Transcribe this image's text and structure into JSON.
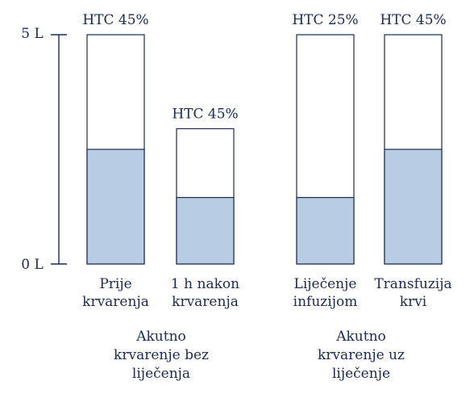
{
  "chart_data": {
    "type": "bar",
    "ylim": [
      0,
      5
    ],
    "y_ticks": [
      "0 L",
      "5 L"
    ],
    "bars": [
      {
        "category": [
          "Prije",
          "krvarenja"
        ],
        "hct_label": "HTC 45%",
        "total": 5.0,
        "filled": 2.5
      },
      {
        "category": [
          "1 h nakon",
          "krvarenja"
        ],
        "hct_label": "HTC 45%",
        "total": 2.95,
        "filled": 1.45
      },
      {
        "category": [
          "Liječenje",
          "infuzijom"
        ],
        "hct_label": "HTC 25%",
        "total": 5.0,
        "filled": 1.45
      },
      {
        "category": [
          "Transfuzija",
          "krvi"
        ],
        "hct_label": "HTC 45%",
        "total": 5.0,
        "filled": 2.5
      }
    ],
    "groups": [
      {
        "label": [
          "Akutno",
          "krvarenje bez",
          "liječenja"
        ]
      },
      {
        "label": [
          "Akutno",
          "krvarenje uz",
          "liječenje"
        ]
      }
    ],
    "colors": {
      "filled": "#b8cce4",
      "outline": "#1b2a4e",
      "text": "#1b2a4e"
    }
  }
}
